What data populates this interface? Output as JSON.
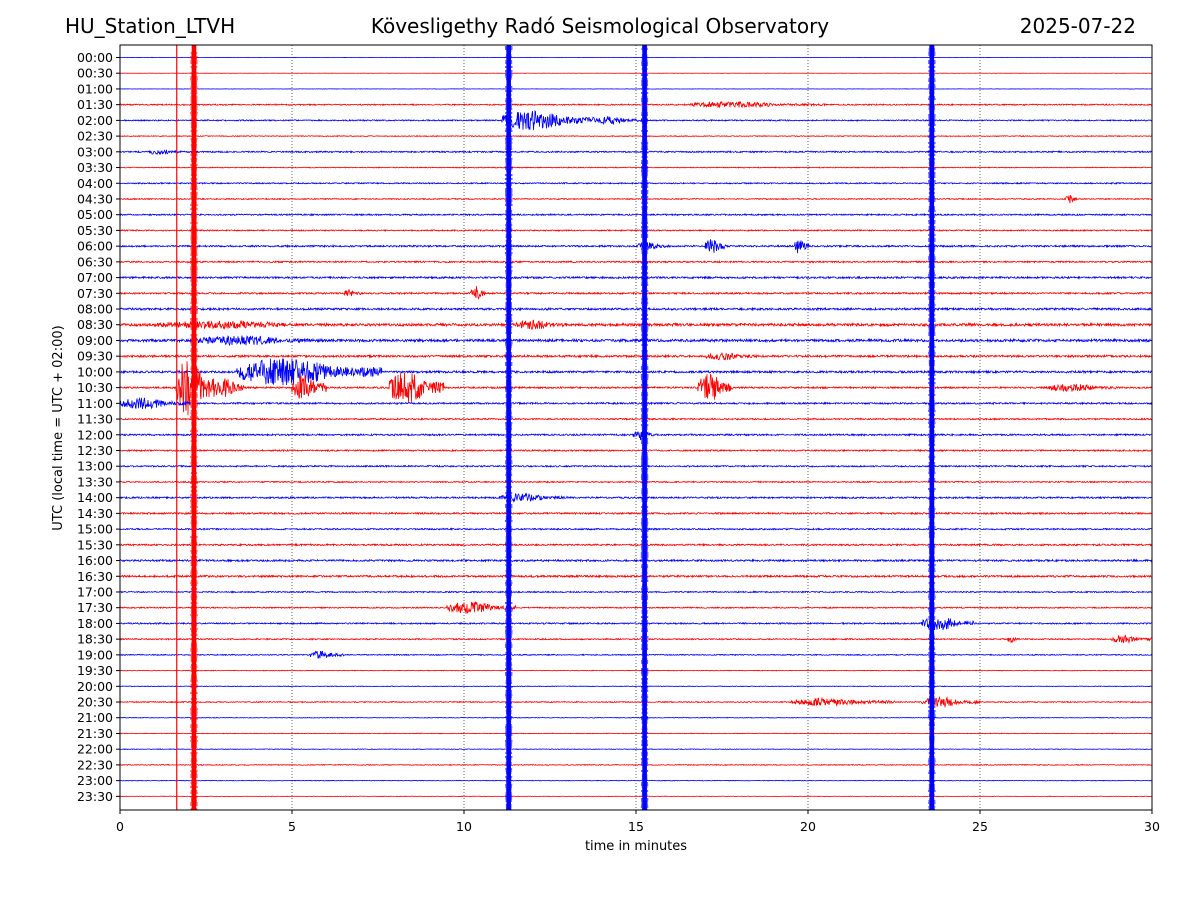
{
  "header": {
    "station": "HU_Station_LTVH",
    "title": "Kövesligethy Radó Seismological Observatory",
    "date": "2025-07-22"
  },
  "chart_data": {
    "type": "line",
    "subtype": "helicorder",
    "xlabel": "time in minutes",
    "ylabel": "UTC (local time = UTC + 02:00)",
    "xlim": [
      0,
      30
    ],
    "x_ticks": [
      0,
      5,
      10,
      15,
      20,
      25,
      30
    ],
    "x_grid": "dotted",
    "trace_colors": [
      "#0000ff",
      "#ff0000"
    ],
    "row_labels": [
      "00:00",
      "00:30",
      "01:00",
      "01:30",
      "02:00",
      "02:30",
      "03:00",
      "03:30",
      "04:00",
      "04:30",
      "05:00",
      "05:30",
      "06:00",
      "06:30",
      "07:00",
      "07:30",
      "08:00",
      "08:30",
      "09:00",
      "09:30",
      "10:00",
      "10:30",
      "11:00",
      "11:30",
      "12:00",
      "12:30",
      "13:00",
      "13:30",
      "14:00",
      "14:30",
      "15:00",
      "15:30",
      "16:00",
      "16:30",
      "17:00",
      "17:30",
      "18:00",
      "18:30",
      "19:00",
      "19:30",
      "20:00",
      "20:30",
      "21:00",
      "21:30",
      "22:00",
      "22:30",
      "23:00",
      "23:30"
    ],
    "row_noise": [
      0.15,
      0.12,
      0.15,
      0.6,
      0.6,
      0.4,
      0.7,
      0.4,
      0.6,
      0.5,
      0.7,
      0.6,
      0.8,
      0.7,
      0.9,
      0.8,
      1.0,
      1.3,
      1.3,
      1.0,
      1.0,
      0.8,
      0.8,
      0.7,
      0.8,
      0.7,
      0.7,
      0.6,
      0.8,
      0.8,
      0.7,
      0.8,
      0.9,
      0.9,
      0.6,
      0.6,
      0.7,
      0.6,
      0.5,
      0.3,
      0.3,
      0.5,
      0.3,
      0.3,
      0.3,
      0.4,
      0.3,
      0.2
    ],
    "vertical_signals": [
      {
        "minute": 1.65,
        "color": "#ff0000",
        "type": "thin"
      },
      {
        "minute": 2.15,
        "color": "#ff0000",
        "type": "thick"
      },
      {
        "minute": 11.3,
        "color": "#0000ff",
        "type": "thick"
      },
      {
        "minute": 15.25,
        "color": "#0000ff",
        "type": "thick"
      },
      {
        "minute": 23.6,
        "color": "#0000ff",
        "type": "thick"
      }
    ],
    "bursts": [
      {
        "row": 4,
        "start": 11.1,
        "end": 13.8,
        "amp": 10
      },
      {
        "row": 4,
        "start": 13.8,
        "end": 15.2,
        "amp": 4
      },
      {
        "row": 3,
        "start": 16.5,
        "end": 20.5,
        "amp": 3
      },
      {
        "row": 6,
        "start": 0.8,
        "end": 1.8,
        "amp": 3
      },
      {
        "row": 12,
        "start": 17.0,
        "end": 17.6,
        "amp": 8
      },
      {
        "row": 12,
        "start": 19.6,
        "end": 20.0,
        "amp": 9
      },
      {
        "row": 12,
        "start": 15.0,
        "end": 16.0,
        "amp": 4
      },
      {
        "row": 9,
        "start": 27.5,
        "end": 27.8,
        "amp": 5
      },
      {
        "row": 15,
        "start": 6.5,
        "end": 7.0,
        "amp": 4
      },
      {
        "row": 15,
        "start": 10.2,
        "end": 10.6,
        "amp": 8
      },
      {
        "row": 17,
        "start": 1.0,
        "end": 7.0,
        "amp": 4
      },
      {
        "row": 17,
        "start": 11.5,
        "end": 13.0,
        "amp": 5
      },
      {
        "row": 18,
        "start": 2.2,
        "end": 6.0,
        "amp": 5
      },
      {
        "row": 19,
        "start": 17.0,
        "end": 18.5,
        "amp": 4
      },
      {
        "row": 20,
        "start": 3.4,
        "end": 7.6,
        "amp": 14
      },
      {
        "row": 21,
        "start": 1.6,
        "end": 2.8,
        "amp": 28
      },
      {
        "row": 21,
        "start": 2.8,
        "end": 3.6,
        "amp": 10
      },
      {
        "row": 21,
        "start": 5.0,
        "end": 6.0,
        "amp": 13
      },
      {
        "row": 21,
        "start": 7.8,
        "end": 9.4,
        "amp": 16
      },
      {
        "row": 21,
        "start": 16.8,
        "end": 17.8,
        "amp": 14
      },
      {
        "row": 21,
        "start": 27.0,
        "end": 29.0,
        "amp": 4
      },
      {
        "row": 22,
        "start": 0.0,
        "end": 2.0,
        "amp": 6
      },
      {
        "row": 24,
        "start": 14.9,
        "end": 15.6,
        "amp": 5
      },
      {
        "row": 28,
        "start": 11.0,
        "end": 13.0,
        "amp": 4
      },
      {
        "row": 35,
        "start": 9.5,
        "end": 11.5,
        "amp": 6
      },
      {
        "row": 36,
        "start": 23.3,
        "end": 24.8,
        "amp": 7
      },
      {
        "row": 37,
        "start": 25.8,
        "end": 26.1,
        "amp": 4
      },
      {
        "row": 37,
        "start": 28.8,
        "end": 30.0,
        "amp": 4
      },
      {
        "row": 38,
        "start": 5.5,
        "end": 6.5,
        "amp": 4
      },
      {
        "row": 41,
        "start": 19.5,
        "end": 22.5,
        "amp": 4
      },
      {
        "row": 41,
        "start": 23.3,
        "end": 25.0,
        "amp": 5
      }
    ]
  }
}
